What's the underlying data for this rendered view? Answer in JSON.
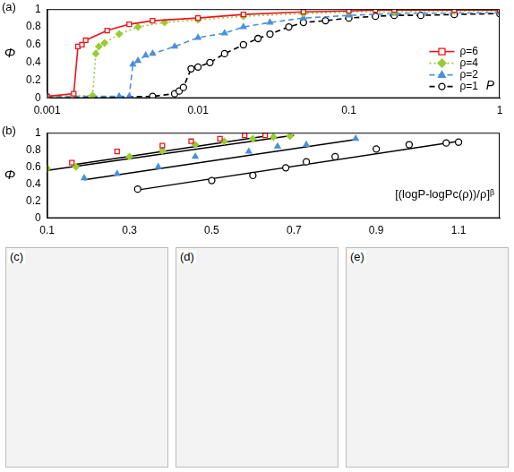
{
  "chart_data": [
    {
      "type": "line",
      "title": "(a)",
      "y_label": "Φ",
      "x_label": "P",
      "log": "x",
      "grid": false,
      "legend": "lower right",
      "xlim": [
        0.001,
        1
      ],
      "xticks": [
        0.001,
        0.01,
        0.1,
        1
      ],
      "ylim": [
        0,
        1
      ],
      "yticks": [
        0,
        0.2,
        0.4,
        0.6,
        0.8,
        1
      ],
      "series": [
        {
          "name": "ρ=6",
          "color": "#e8161b",
          "marker": "square",
          "line_style": "solid",
          "x": [
            0.001,
            0.0015,
            0.0016,
            0.0017,
            0.0018,
            0.0025,
            0.0035,
            0.005,
            0.01,
            0.02,
            0.05,
            0.1,
            0.15,
            0.2,
            0.5,
            1
          ],
          "values": [
            0.02,
            0.05,
            0.58,
            0.6,
            0.65,
            0.76,
            0.83,
            0.87,
            0.9,
            0.94,
            0.97,
            0.98,
            0.99,
            0.99,
            0.99,
            0.99
          ]
        },
        {
          "name": "ρ=4",
          "color": "#99cc33",
          "marker": "diamond",
          "line_style": "dotted",
          "x": [
            0.001,
            0.002,
            0.0021,
            0.0022,
            0.0024,
            0.003,
            0.004,
            0.006,
            0.01,
            0.02,
            0.05,
            0.1,
            0.2,
            0.5,
            1
          ],
          "values": [
            0.02,
            0.03,
            0.5,
            0.58,
            0.62,
            0.72,
            0.8,
            0.85,
            0.88,
            0.92,
            0.95,
            0.97,
            0.97,
            0.98,
            0.98
          ]
        },
        {
          "name": "ρ=2",
          "color": "#4a90d9",
          "marker": "triangle",
          "line_style": "dashed",
          "x": [
            0.001,
            0.003,
            0.0035,
            0.0037,
            0.004,
            0.0045,
            0.005,
            0.007,
            0.01,
            0.015,
            0.02,
            0.03,
            0.05,
            0.1,
            0.2,
            1
          ],
          "values": [
            0.02,
            0.02,
            0.02,
            0.38,
            0.42,
            0.48,
            0.5,
            0.58,
            0.68,
            0.73,
            0.8,
            0.85,
            0.9,
            0.93,
            0.95,
            0.96
          ]
        },
        {
          "name": "ρ=1",
          "color": "#000000",
          "marker": "circle",
          "line_style": "dashed",
          "x": [
            0.001,
            0.005,
            0.007,
            0.0075,
            0.008,
            0.009,
            0.01,
            0.012,
            0.015,
            0.02,
            0.025,
            0.03,
            0.04,
            0.05,
            0.07,
            0.1,
            0.15,
            0.2,
            0.3,
            0.5,
            1
          ],
          "values": [
            0,
            0.02,
            0.05,
            0.08,
            0.12,
            0.33,
            0.35,
            0.4,
            0.5,
            0.6,
            0.67,
            0.72,
            0.8,
            0.85,
            0.87,
            0.9,
            0.92,
            0.93,
            0.93,
            0.94,
            0.95
          ]
        }
      ]
    },
    {
      "type": "scatter",
      "title": "(b)",
      "y_label": "Φ",
      "x_label": "[(logP-logPc(ρ))/ρ]ᵝ",
      "grid": false,
      "xlim": [
        0.1,
        1.2
      ],
      "xticks": [
        0.1,
        0.3,
        0.5,
        0.7,
        0.9,
        1.1
      ],
      "ylim": [
        0,
        1
      ],
      "yticks": [
        0,
        0.2,
        0.4,
        0.6,
        0.8,
        1
      ],
      "series": [
        {
          "color": "#e8161b",
          "marker": "square",
          "x": [
            0.16,
            0.27,
            0.38,
            0.45,
            0.52,
            0.58,
            0.63
          ],
          "values": [
            0.65,
            0.78,
            0.85,
            0.9,
            0.93,
            0.97,
            0.97
          ],
          "fit": {
            "x": [
              0.17,
              0.63
            ],
            "values": [
              0.63,
              0.96
            ],
            "color": "#000000"
          }
        },
        {
          "color": "#99cc33",
          "marker": "diamond",
          "x": [
            0.1,
            0.17,
            0.3,
            0.38,
            0.46,
            0.53,
            0.6,
            0.65,
            0.69
          ],
          "values": [
            0.58,
            0.6,
            0.72,
            0.79,
            0.86,
            0.9,
            0.93,
            0.95,
            0.96
          ],
          "fit": {
            "x": [
              0.1,
              0.7
            ],
            "values": [
              0.56,
              0.97
            ],
            "color": "#000000"
          }
        },
        {
          "color": "#4a90d9",
          "marker": "triangle",
          "x": [
            0.19,
            0.27,
            0.37,
            0.46,
            0.59,
            0.66,
            0.73,
            0.85
          ],
          "values": [
            0.47,
            0.52,
            0.6,
            0.72,
            0.78,
            0.84,
            0.86,
            0.93
          ],
          "fit": {
            "x": [
              0.19,
              0.85
            ],
            "values": [
              0.45,
              0.92
            ],
            "color": "#000000"
          }
        },
        {
          "color": "#000000",
          "marker": "circle",
          "x": [
            0.32,
            0.5,
            0.6,
            0.68,
            0.73,
            0.8,
            0.9,
            0.98,
            1.07,
            1.1
          ],
          "values": [
            0.34,
            0.44,
            0.5,
            0.59,
            0.66,
            0.72,
            0.81,
            0.86,
            0.88,
            0.89
          ],
          "fit": {
            "x": [
              0.32,
              1.1
            ],
            "values": [
              0.33,
              0.9
            ],
            "color": "#000000"
          }
        }
      ]
    }
  ],
  "images": [
    {
      "label": "(c)"
    },
    {
      "label": "(d)"
    },
    {
      "label": "(e)"
    }
  ]
}
